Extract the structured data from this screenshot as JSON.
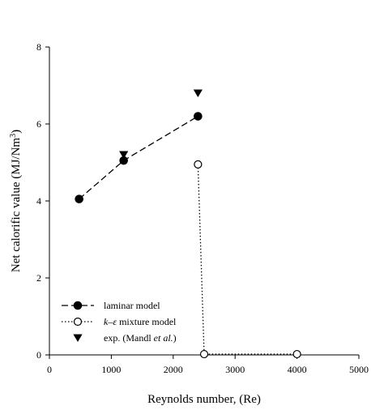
{
  "chart_data": {
    "type": "scatter",
    "title": "",
    "xlabel": "Reynolds number, (Re)",
    "ylabel": {
      "main": "Net calorific value (MJ/Nm",
      "sup": "3",
      "close": ")"
    },
    "xlim": [
      0,
      5000
    ],
    "ylim": [
      0,
      8
    ],
    "x_ticks": [
      0,
      1000,
      2000,
      3000,
      4000,
      5000
    ],
    "y_ticks": [
      0,
      2,
      4,
      6,
      8
    ],
    "grid": false,
    "legend_position": "bottom-left",
    "series": [
      {
        "name": "laminar model",
        "legend_parts": [
          {
            "text": "laminar model",
            "italic": false
          }
        ],
        "marker": "filled-circle",
        "line": "dashed",
        "points": [
          {
            "x": 480,
            "y": 4.05
          },
          {
            "x": 1200,
            "y": 5.05
          },
          {
            "x": 2400,
            "y": 6.2
          }
        ]
      },
      {
        "name": "k–ε mixture model",
        "legend_parts": [
          {
            "text": "k–ε",
            "italic": true
          },
          {
            "text": " mixture model",
            "italic": false
          }
        ],
        "marker": "open-circle",
        "line": "dotted",
        "points": [
          {
            "x": 2400,
            "y": 4.95
          },
          {
            "x": 2500,
            "y": 0.02
          },
          {
            "x": 4000,
            "y": 0.02
          }
        ]
      },
      {
        "name": "exp. (Mandl et al.)",
        "legend_parts": [
          {
            "text": "exp. (Mandl ",
            "italic": false
          },
          {
            "text": "et al.",
            "italic": true
          },
          {
            "text": ")",
            "italic": false
          }
        ],
        "marker": "filled-triangle-down",
        "line": "none",
        "points": [
          {
            "x": 1200,
            "y": 5.2
          },
          {
            "x": 2400,
            "y": 6.8
          }
        ]
      }
    ]
  }
}
